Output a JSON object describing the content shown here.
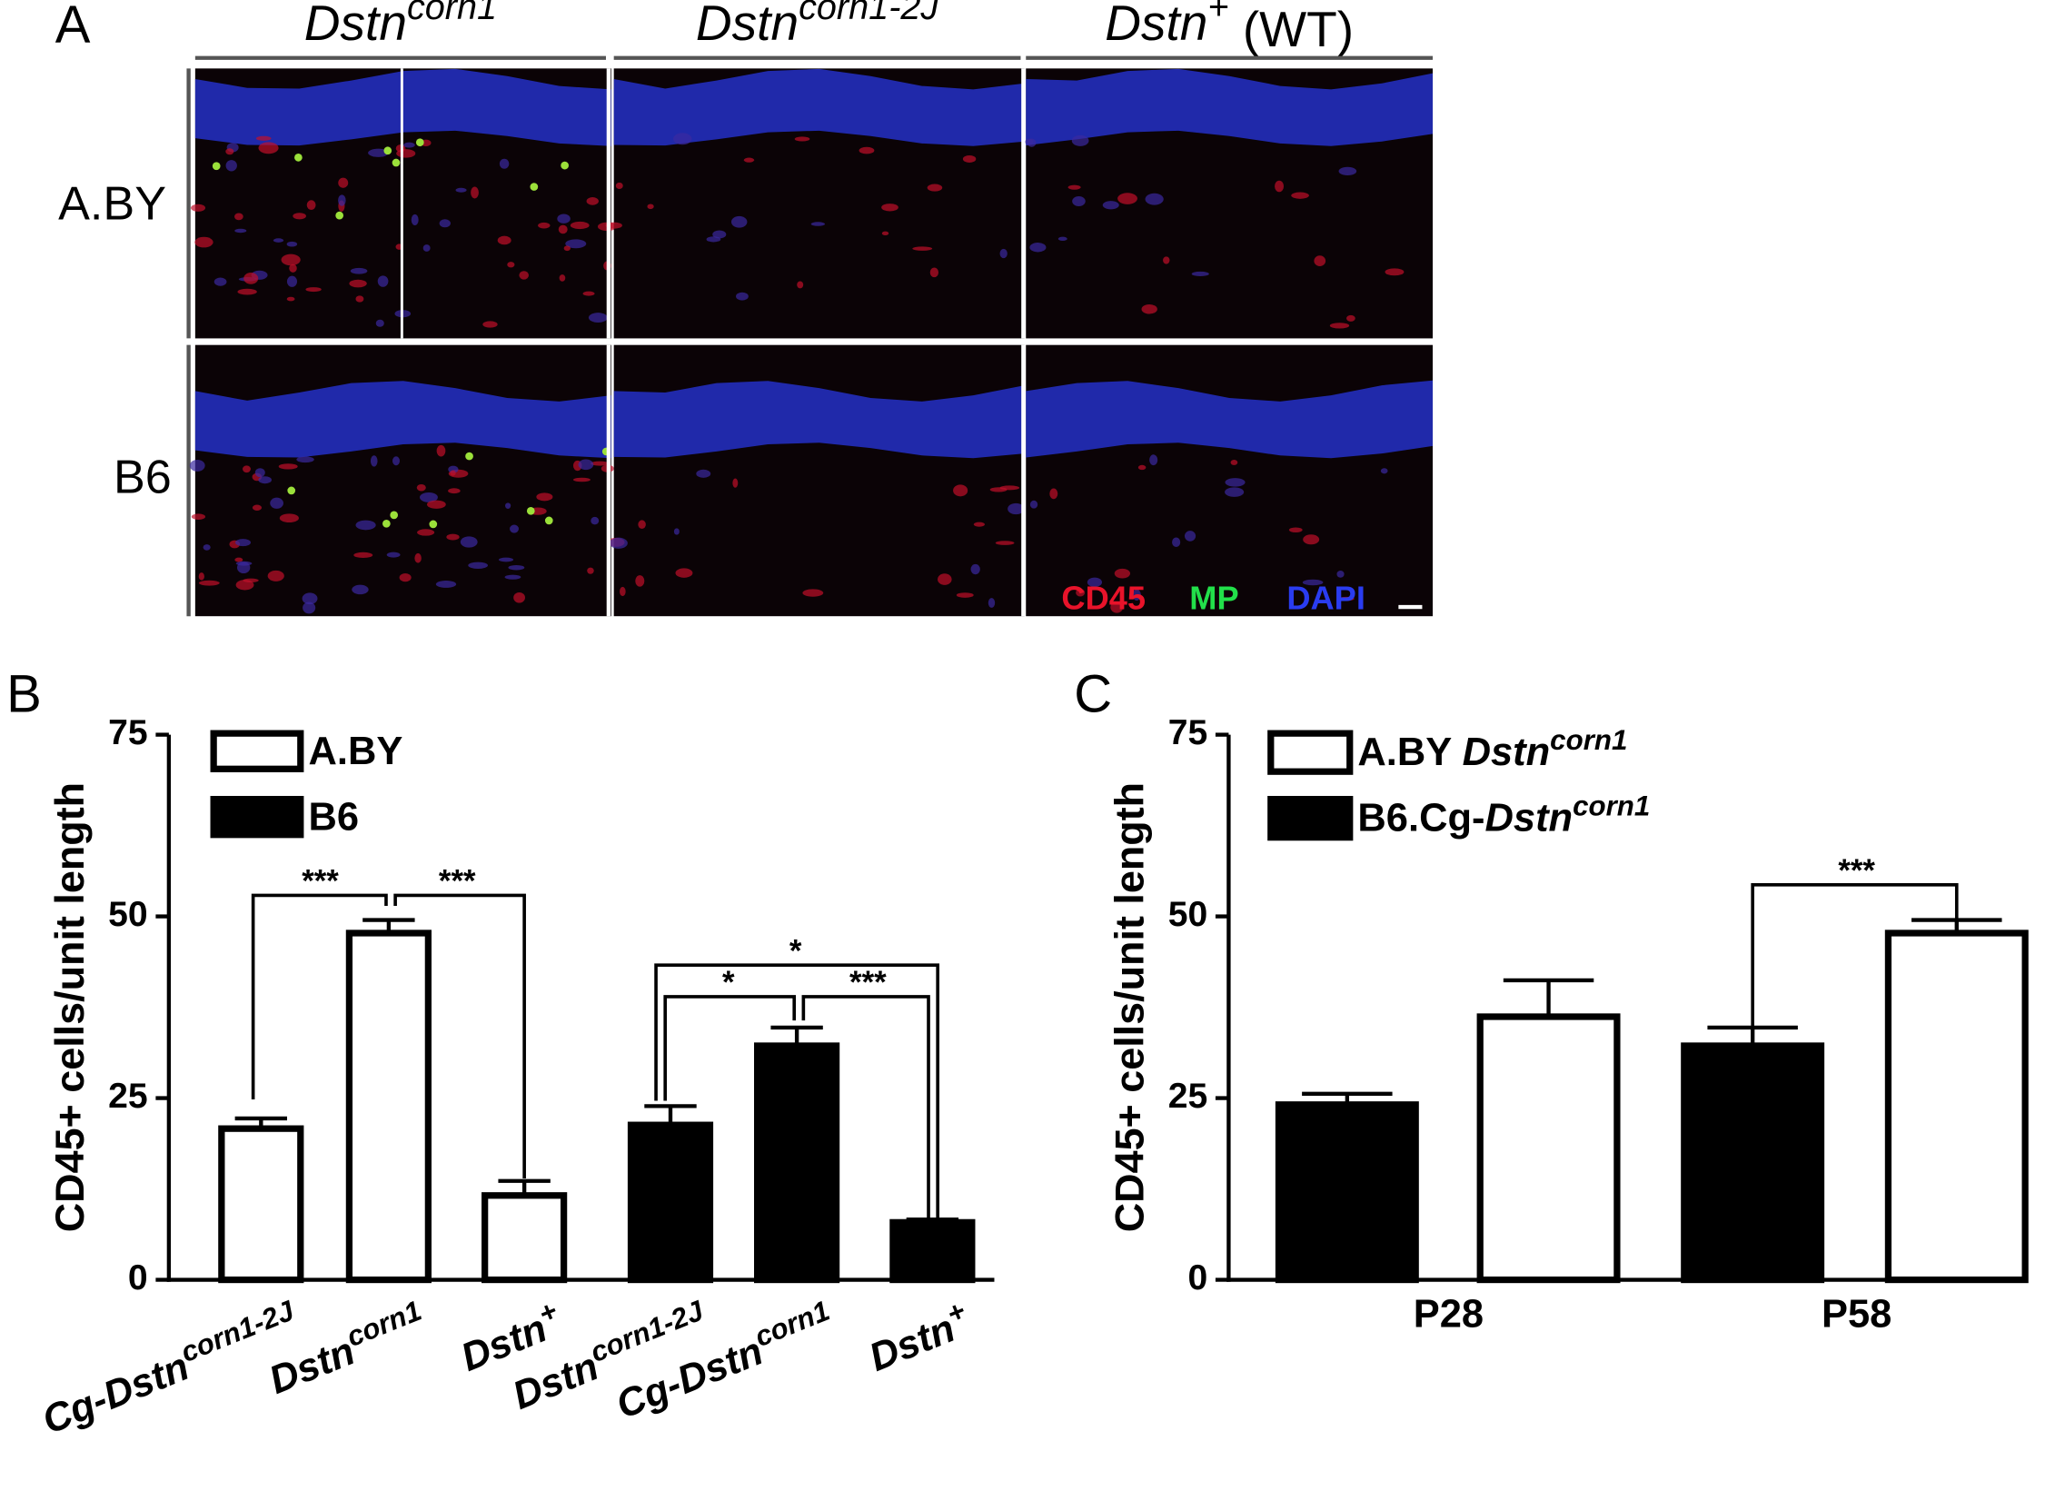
{
  "panel_a": {
    "label": "A",
    "columns": [
      {
        "it": "Dstn",
        "sup": "corn1"
      },
      {
        "it": "Dstn",
        "sup": "corn1-2J"
      },
      {
        "it": "Dstn",
        "sup": "+",
        "post": " (WT)"
      }
    ],
    "rows": [
      "A.BY",
      "B6"
    ],
    "stains": [
      {
        "text": "CD45",
        "color": "#e8132a"
      },
      {
        "text": "MP",
        "color": "#22e04a"
      },
      {
        "text": "DAPI",
        "color": "#2a3cf0"
      }
    ]
  },
  "chart_data": [
    {
      "type": "bar",
      "panel": "B",
      "ylabel": "CD45+ cells/unit length",
      "categories": [
        {
          "pre": "Cg-",
          "it": "Dstn",
          "sup": "corn1-2J"
        },
        {
          "it": "Dstn",
          "sup": "corn1"
        },
        {
          "it": "Dstn",
          "sup": "+"
        },
        {
          "it": "Dstn",
          "sup": "corn1-2J"
        },
        {
          "pre": "Cg-",
          "it": "Dstn",
          "sup": "corn1"
        },
        {
          "it": "Dstn",
          "sup": "+"
        }
      ],
      "series": [
        {
          "name": "A.BY",
          "color": "#ffffff",
          "values": [
            20.8,
            47.7,
            11.6,
            null,
            null,
            null
          ],
          "errors": [
            1.4,
            1.8,
            2.0,
            null,
            null,
            null
          ]
        },
        {
          "name": "B6",
          "color": "#000000",
          "values": [
            null,
            null,
            null,
            21.3,
            32.2,
            7.9
          ],
          "errors": [
            null,
            null,
            null,
            2.6,
            2.5,
            0.4
          ]
        }
      ],
      "ylim": [
        0,
        75
      ],
      "yticks": [
        0,
        25,
        50,
        75
      ],
      "annotations": [
        "***",
        "***",
        "*",
        "***",
        "*"
      ]
    },
    {
      "type": "bar",
      "panel": "C",
      "ylabel": "CD45+ cells/unit length",
      "categories": [
        "P28",
        "P58"
      ],
      "series": [
        {
          "name": {
            "pre": "A.BY ",
            "it": "Dstn",
            "sup": "corn1"
          },
          "color": "#ffffff",
          "values": [
            36.2,
            47.7
          ],
          "errors": [
            5.0,
            1.8
          ]
        },
        {
          "name": {
            "pre": "B6.Cg-",
            "it": "Dstn",
            "sup": "corn1"
          },
          "color": "#000000",
          "values": [
            24.1,
            32.2
          ],
          "errors": [
            1.5,
            2.5
          ]
        }
      ],
      "ylim": [
        0,
        75
      ],
      "yticks": [
        0,
        25,
        50,
        75
      ],
      "annotations": [
        "***"
      ]
    }
  ]
}
